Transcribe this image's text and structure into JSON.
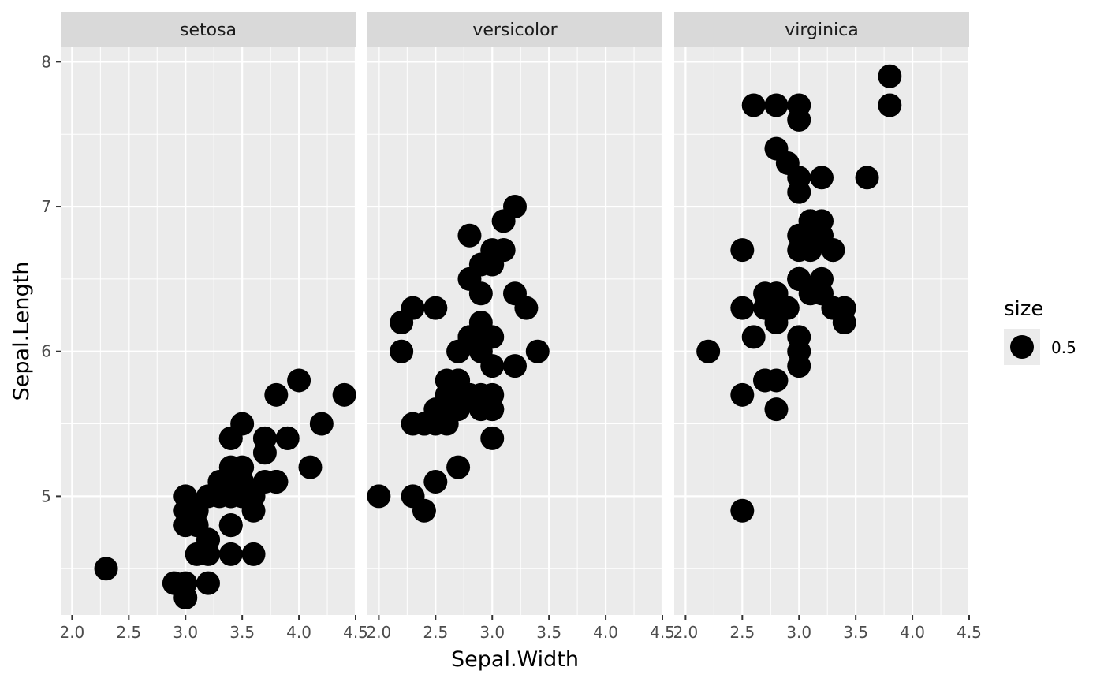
{
  "chart_data": {
    "type": "scatter",
    "xlabel": "Sepal.Width",
    "ylabel": "Sepal.Length",
    "xlim": [
      1.9,
      4.5
    ],
    "ylim": [
      4.18,
      8.1
    ],
    "x_ticks": [
      2.0,
      2.5,
      3.0,
      3.5,
      4.0,
      4.5
    ],
    "x_tick_labels": [
      "2.0",
      "2.5",
      "3.0",
      "3.5",
      "4.0",
      "4.5"
    ],
    "y_ticks": [
      5,
      6,
      7,
      8
    ],
    "y_tick_labels": [
      "5",
      "6",
      "7",
      "8"
    ],
    "grid": true,
    "legend": {
      "title": "size",
      "labels": [
        "0.5"
      ],
      "position": "right"
    },
    "colors": {
      "panel": "#ebebeb",
      "strip": "#d9d9d9",
      "grid": "#ffffff",
      "point": "#000000"
    },
    "facets": [
      {
        "label": "setosa",
        "points": [
          [
            3.5,
            5.1
          ],
          [
            3.0,
            4.9
          ],
          [
            3.2,
            4.7
          ],
          [
            3.1,
            4.6
          ],
          [
            3.6,
            5.0
          ],
          [
            3.9,
            5.4
          ],
          [
            3.4,
            4.6
          ],
          [
            3.4,
            5.0
          ],
          [
            2.9,
            4.4
          ],
          [
            3.1,
            4.9
          ],
          [
            3.7,
            5.4
          ],
          [
            3.4,
            4.8
          ],
          [
            3.0,
            4.8
          ],
          [
            3.0,
            4.3
          ],
          [
            4.0,
            5.8
          ],
          [
            4.4,
            5.7
          ],
          [
            3.9,
            5.4
          ],
          [
            3.5,
            5.1
          ],
          [
            3.8,
            5.7
          ],
          [
            3.8,
            5.1
          ],
          [
            3.4,
            5.4
          ],
          [
            3.7,
            5.1
          ],
          [
            3.6,
            4.6
          ],
          [
            3.3,
            5.1
          ],
          [
            3.4,
            4.8
          ],
          [
            3.0,
            5.0
          ],
          [
            3.4,
            5.0
          ],
          [
            3.5,
            5.2
          ],
          [
            3.4,
            5.2
          ],
          [
            3.2,
            4.7
          ],
          [
            3.1,
            4.8
          ],
          [
            3.4,
            5.4
          ],
          [
            4.1,
            5.2
          ],
          [
            4.2,
            5.5
          ],
          [
            3.1,
            4.9
          ],
          [
            3.2,
            5.0
          ],
          [
            3.5,
            5.5
          ],
          [
            3.6,
            4.9
          ],
          [
            3.0,
            4.4
          ],
          [
            3.4,
            5.1
          ],
          [
            3.5,
            5.0
          ],
          [
            2.3,
            4.5
          ],
          [
            3.2,
            4.4
          ],
          [
            3.5,
            5.0
          ],
          [
            3.8,
            5.1
          ],
          [
            3.0,
            4.8
          ],
          [
            3.8,
            5.1
          ],
          [
            3.2,
            4.6
          ],
          [
            3.7,
            5.3
          ],
          [
            3.3,
            5.0
          ]
        ]
      },
      {
        "label": "versicolor",
        "points": [
          [
            3.2,
            7.0
          ],
          [
            3.2,
            6.4
          ],
          [
            3.1,
            6.9
          ],
          [
            2.3,
            5.5
          ],
          [
            2.8,
            6.5
          ],
          [
            2.8,
            5.7
          ],
          [
            3.3,
            6.3
          ],
          [
            2.4,
            4.9
          ],
          [
            2.9,
            6.6
          ],
          [
            2.7,
            5.2
          ],
          [
            2.0,
            5.0
          ],
          [
            3.0,
            5.9
          ],
          [
            2.2,
            6.0
          ],
          [
            2.9,
            6.1
          ],
          [
            2.9,
            5.6
          ],
          [
            3.1,
            6.7
          ],
          [
            3.0,
            5.6
          ],
          [
            2.7,
            5.8
          ],
          [
            2.2,
            6.2
          ],
          [
            2.5,
            5.6
          ],
          [
            3.2,
            5.9
          ],
          [
            2.8,
            6.1
          ],
          [
            2.5,
            6.3
          ],
          [
            2.8,
            6.1
          ],
          [
            2.9,
            6.4
          ],
          [
            3.0,
            6.6
          ],
          [
            2.8,
            6.8
          ],
          [
            3.0,
            6.7
          ],
          [
            2.9,
            6.0
          ],
          [
            2.6,
            5.7
          ],
          [
            2.4,
            5.5
          ],
          [
            2.4,
            5.5
          ],
          [
            2.7,
            5.8
          ],
          [
            2.7,
            6.0
          ],
          [
            3.0,
            5.4
          ],
          [
            3.4,
            6.0
          ],
          [
            3.1,
            6.7
          ],
          [
            2.3,
            6.3
          ],
          [
            3.0,
            5.6
          ],
          [
            2.5,
            5.5
          ],
          [
            2.6,
            5.5
          ],
          [
            3.0,
            6.1
          ],
          [
            2.6,
            5.8
          ],
          [
            2.3,
            5.0
          ],
          [
            2.7,
            5.6
          ],
          [
            3.0,
            5.7
          ],
          [
            2.9,
            5.7
          ],
          [
            2.9,
            6.2
          ],
          [
            2.5,
            5.1
          ],
          [
            2.8,
            5.7
          ]
        ]
      },
      {
        "label": "virginica",
        "points": [
          [
            3.3,
            6.3
          ],
          [
            2.7,
            5.8
          ],
          [
            3.0,
            7.1
          ],
          [
            2.9,
            6.3
          ],
          [
            3.0,
            6.5
          ],
          [
            3.0,
            7.6
          ],
          [
            2.5,
            4.9
          ],
          [
            2.9,
            7.3
          ],
          [
            2.5,
            6.7
          ],
          [
            3.6,
            7.2
          ],
          [
            3.2,
            6.5
          ],
          [
            2.7,
            6.4
          ],
          [
            3.0,
            6.8
          ],
          [
            2.5,
            5.7
          ],
          [
            2.8,
            5.8
          ],
          [
            3.2,
            6.4
          ],
          [
            3.0,
            6.5
          ],
          [
            3.8,
            7.7
          ],
          [
            2.6,
            7.7
          ],
          [
            2.2,
            6.0
          ],
          [
            3.2,
            6.9
          ],
          [
            2.8,
            5.6
          ],
          [
            2.8,
            7.7
          ],
          [
            2.7,
            6.3
          ],
          [
            3.3,
            6.7
          ],
          [
            3.2,
            7.2
          ],
          [
            2.8,
            6.2
          ],
          [
            3.0,
            6.1
          ],
          [
            2.8,
            6.4
          ],
          [
            3.0,
            7.2
          ],
          [
            2.8,
            7.4
          ],
          [
            3.8,
            7.9
          ],
          [
            2.8,
            6.4
          ],
          [
            2.8,
            6.3
          ],
          [
            2.6,
            6.1
          ],
          [
            3.0,
            7.7
          ],
          [
            3.4,
            6.3
          ],
          [
            3.1,
            6.4
          ],
          [
            3.0,
            6.0
          ],
          [
            3.1,
            6.9
          ],
          [
            3.1,
            6.7
          ],
          [
            3.1,
            6.9
          ],
          [
            2.7,
            5.8
          ],
          [
            3.2,
            6.8
          ],
          [
            3.3,
            6.7
          ],
          [
            3.0,
            6.7
          ],
          [
            2.5,
            6.3
          ],
          [
            3.0,
            6.5
          ],
          [
            3.4,
            6.2
          ],
          [
            3.0,
            5.9
          ]
        ]
      }
    ]
  }
}
